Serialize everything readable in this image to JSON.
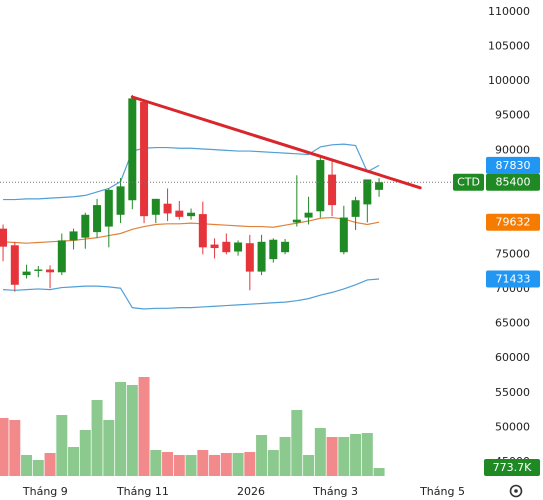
{
  "chart_data": {
    "type": "candlestick",
    "symbol": "CTD",
    "x": [
      0,
      1,
      2,
      3,
      4,
      5,
      6,
      7,
      8,
      9,
      10,
      11,
      12,
      13,
      14,
      15,
      16,
      17,
      18,
      19,
      20,
      21,
      22,
      23,
      24,
      25,
      26,
      27,
      28,
      29,
      30,
      31,
      32
    ],
    "open": [
      78700,
      76300,
      72000,
      72600,
      72800,
      72400,
      77000,
      77400,
      78200,
      79000,
      80700,
      82800,
      97000,
      80700,
      82300,
      81300,
      80500,
      80800,
      76400,
      76800,
      75400,
      76600,
      72500,
      74300,
      75300,
      79600,
      80300,
      81200,
      86500,
      75300,
      80400,
      82200,
      84300
    ],
    "high": [
      79300,
      76800,
      73500,
      73300,
      73400,
      78000,
      78700,
      81000,
      83000,
      84500,
      86000,
      98000,
      97300,
      83000,
      84500,
      82700,
      81600,
      82600,
      77300,
      78000,
      77000,
      77800,
      77800,
      77300,
      77200,
      86400,
      83300,
      89000,
      88500,
      82000,
      83300,
      85800,
      86000
    ],
    "low": [
      74000,
      69600,
      71500,
      71700,
      70100,
      72000,
      75700,
      75800,
      77400,
      76000,
      79500,
      81500,
      79500,
      79500,
      79800,
      80000,
      80000,
      75000,
      74400,
      75000,
      74800,
      69800,
      72000,
      73800,
      75000,
      79000,
      79300,
      80300,
      80500,
      75000,
      78500,
      79600,
      83300
    ],
    "close": [
      76100,
      70600,
      72500,
      72800,
      72400,
      77000,
      78300,
      80700,
      82100,
      84300,
      84800,
      97500,
      80500,
      83000,
      80900,
      80400,
      81000,
      76000,
      75900,
      75300,
      76700,
      72500,
      76800,
      77100,
      76800,
      80000,
      81000,
      88600,
      82100,
      80300,
      82800,
      85800,
      85400
    ],
    "up_color": "#1f8a24",
    "down_color": "#e5343a",
    "bands": [
      {
        "color": "#4f9fd6",
        "values": [
          82900,
          82900,
          83000,
          83000,
          83100,
          83200,
          83300,
          83500,
          84000,
          84500,
          85500,
          89900,
          90300,
          90400,
          90400,
          90300,
          90300,
          90200,
          90100,
          90000,
          89900,
          89900,
          89800,
          89700,
          89600,
          89500,
          89400,
          90500,
          90800,
          90900,
          90700,
          86900,
          87830
        ]
      },
      {
        "color": "#e0823a",
        "values": [
          76800,
          76700,
          76600,
          76700,
          76800,
          76900,
          77000,
          77200,
          77400,
          77700,
          78000,
          78600,
          79000,
          79300,
          79400,
          79400,
          79500,
          79400,
          79300,
          79200,
          79100,
          79000,
          79000,
          78900,
          79200,
          79500,
          79800,
          80200,
          80300,
          80100,
          79600,
          79300,
          79632
        ]
      },
      {
        "color": "#4f9fd6",
        "values": [
          69900,
          69800,
          69900,
          70000,
          69900,
          70200,
          70300,
          70400,
          70400,
          70300,
          70100,
          67300,
          67100,
          67200,
          67200,
          67300,
          67300,
          67400,
          67500,
          67600,
          67700,
          67800,
          67900,
          68000,
          68100,
          68300,
          68600,
          69100,
          69500,
          70000,
          70600,
          71300,
          71433
        ]
      }
    ],
    "badge_colors": [
      "#2196f3",
      "#f57c00",
      "#2196f3"
    ],
    "trendline": {
      "x": [
        11,
        35.5
      ],
      "y": [
        97700,
        84600
      ],
      "color": "#d9262b"
    },
    "ylim": [
      43000,
      111700
    ],
    "yticks": [
      110000,
      105000,
      100000,
      95000,
      90000,
      85000,
      80000,
      75000,
      70000,
      65000,
      60000,
      55000,
      50000,
      45000
    ],
    "xlim": [
      -0.26,
      41.44
    ],
    "xticks": [
      {
        "value": 3.6,
        "label": "Tháng 9"
      },
      {
        "value": 11.9,
        "label": "Tháng 11"
      },
      {
        "value": 21.1,
        "label": "2026"
      },
      {
        "value": 28.3,
        "label": "Tháng 3"
      },
      {
        "value": 37.4,
        "label": "Tháng 5"
      }
    ],
    "volume": {
      "values": [
        5609,
        5415,
        2031,
        1547,
        2224,
        5899,
        2804,
        4448,
        7349,
        5415,
        9090,
        8800,
        9573,
        2514,
        2321,
        2031,
        2031,
        2514,
        2031,
        2224,
        2224,
        2321,
        3965,
        2514,
        3771,
        6382,
        2031,
        4642,
        3771,
        3771,
        4061,
        4158,
        773.7
      ],
      "value_labels": [
        null,
        null,
        null,
        null,
        null,
        null,
        null,
        null,
        null,
        null,
        null,
        null,
        null,
        null,
        null,
        null,
        null,
        null,
        null,
        null,
        null,
        null,
        null,
        null,
        null,
        null,
        null,
        null,
        null,
        null,
        null,
        null,
        "773.7K"
      ],
      "ylim": [
        0,
        9670
      ],
      "up_color": "#8cc98e",
      "down_color": "#f28a8c"
    }
  }
}
